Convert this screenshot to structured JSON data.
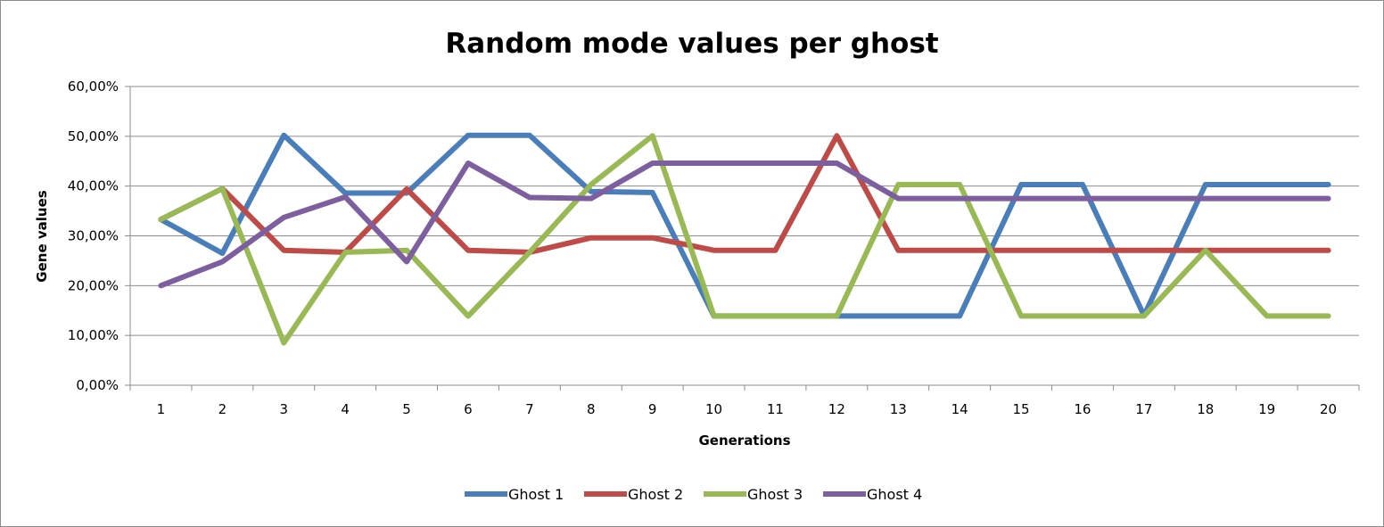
{
  "chart_data": {
    "type": "line",
    "title": "Random mode values per ghost",
    "xlabel": "Generations",
    "ylabel": "Gene values",
    "x": [
      1,
      2,
      3,
      4,
      5,
      6,
      7,
      8,
      9,
      10,
      11,
      12,
      13,
      14,
      15,
      16,
      17,
      18,
      19,
      20
    ],
    "yticks": [
      "0,00%",
      "10,00%",
      "20,00%",
      "30,00%",
      "40,00%",
      "50,00%",
      "60,00%"
    ],
    "ylim": [
      0,
      60
    ],
    "grid": true,
    "legend": "bottom",
    "series": [
      {
        "name": "Ghost 1",
        "color": "#4a7ebb",
        "values": [
          33.3,
          26.5,
          50.2,
          38.6,
          38.6,
          50.2,
          50.2,
          38.9,
          38.7,
          13.9,
          13.9,
          13.9,
          13.9,
          13.9,
          40.3,
          40.3,
          14.0,
          40.3,
          40.3,
          40.3
        ]
      },
      {
        "name": "Ghost 2",
        "color": "#be4b48",
        "values": [
          33.3,
          39.5,
          27.1,
          26.7,
          39.4,
          27.1,
          26.7,
          29.6,
          29.6,
          27.1,
          27.1,
          50.1,
          27.1,
          27.1,
          27.1,
          27.1,
          27.1,
          27.1,
          27.1,
          27.1
        ]
      },
      {
        "name": "Ghost 3",
        "color": "#98b954",
        "values": [
          33.3,
          39.5,
          8.5,
          26.7,
          27.1,
          13.9,
          26.7,
          40.3,
          50.1,
          13.9,
          13.9,
          13.9,
          40.3,
          40.3,
          13.9,
          13.9,
          13.9,
          27.1,
          13.9,
          13.9
        ]
      },
      {
        "name": "Ghost 4",
        "color": "#7d5fa0",
        "values": [
          20.0,
          24.8,
          33.7,
          37.8,
          24.8,
          44.6,
          37.7,
          37.5,
          44.6,
          44.6,
          44.6,
          44.6,
          37.5,
          37.5,
          37.5,
          37.5,
          37.5,
          37.5,
          37.5,
          37.5
        ]
      }
    ]
  }
}
